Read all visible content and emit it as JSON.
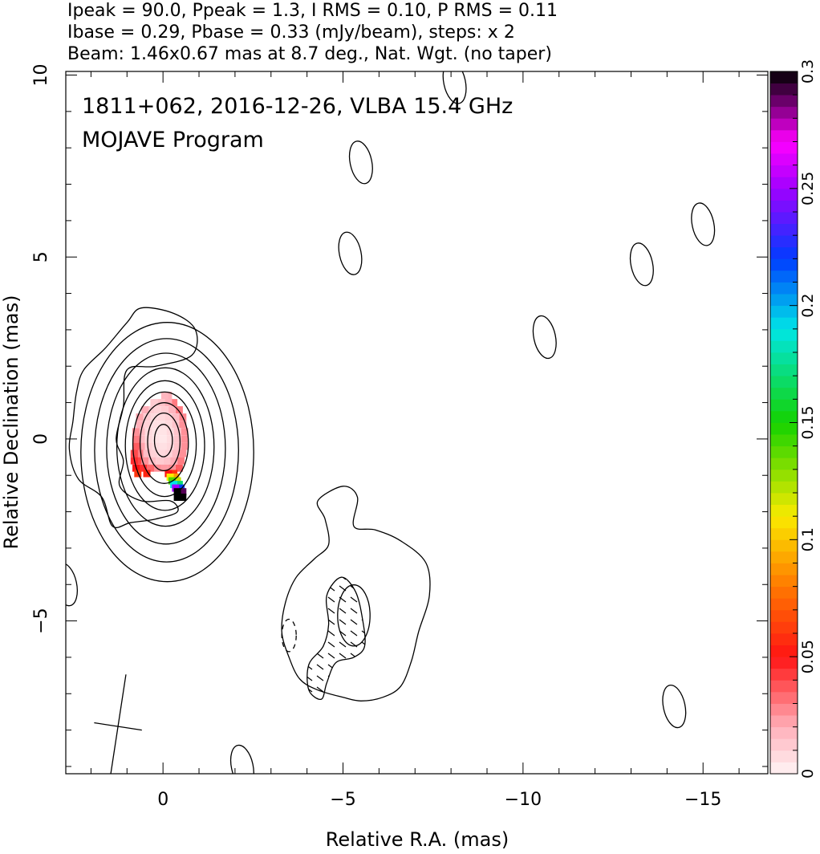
{
  "header": {
    "line1": "Ipeak = 90.0, Ppeak = 1.3, I RMS = 0.10, P RMS = 0.11",
    "line2": "Ibase = 0.29, Pbase = 0.33 (mJy/beam), steps: x 2",
    "line3": "Beam: 1.46x0.67 mas at 8.7 deg., Nat. Wgt. (no taper)"
  },
  "chart_data": {
    "type": "heatmap",
    "title": "1811+062, 2016-12-26, VLBA 15.4 GHz",
    "subtitle": "MOJAVE Program",
    "xlabel": "Relative R.A. (mas)",
    "ylabel": "Relative Declination (mas)",
    "xlim": [
      2.7,
      -16.8
    ],
    "ylim": [
      -9.2,
      10.1
    ],
    "x_ticks": [
      0,
      -5,
      -10,
      -15
    ],
    "x_tick_labels": [
      "0",
      "−5",
      "−10",
      "−15"
    ],
    "y_ticks": [
      10,
      5,
      0,
      -5
    ],
    "y_tick_labels": [
      "10",
      "5",
      "0",
      "−5"
    ],
    "colorbar": {
      "range": [
        0,
        0.3
      ],
      "ticks": [
        0,
        0.05,
        0.1,
        0.15,
        0.2,
        0.25,
        0.3
      ],
      "tick_labels": [
        "0",
        "0.05",
        "0.1",
        "0.15",
        "0.2",
        "0.25",
        "0.3"
      ]
    },
    "contours": {
      "base_mJy_per_beam": 0.29,
      "step_factor": 2,
      "core_center_mas": [
        0.0,
        0.0
      ],
      "nested_core_contour_semi_axes_mas": [
        [
          2.4,
          3.6
        ],
        [
          2.0,
          3.1
        ],
        [
          1.65,
          2.65
        ],
        [
          1.35,
          2.2
        ],
        [
          1.1,
          1.8
        ],
        [
          0.88,
          1.45
        ],
        [
          0.67,
          1.12
        ],
        [
          0.45,
          0.8
        ],
        [
          0.25,
          0.45
        ]
      ],
      "outer_core_contour_mas": [
        [
          -0.2,
          -1.7
        ],
        [
          0.6,
          -1.7
        ],
        [
          1.2,
          -1.3
        ],
        [
          1.1,
          -0.6
        ],
        [
          1.3,
          0.0
        ],
        [
          1.1,
          0.9
        ],
        [
          1.0,
          1.9
        ],
        [
          0.2,
          2.0
        ],
        [
          -0.8,
          2.3
        ],
        [
          -0.9,
          3.0
        ],
        [
          -0.3,
          3.45
        ],
        [
          0.6,
          3.6
        ],
        [
          1.0,
          3.2
        ],
        [
          1.6,
          2.5
        ],
        [
          2.2,
          1.9
        ],
        [
          2.4,
          1.3
        ],
        [
          2.5,
          0.5
        ],
        [
          2.6,
          -0.3
        ],
        [
          2.35,
          -1.1
        ],
        [
          1.7,
          -1.6
        ],
        [
          1.4,
          -2.4
        ],
        [
          0.9,
          -2.3
        ],
        [
          0.2,
          -2.2
        ],
        [
          -0.4,
          -2.0
        ]
      ],
      "jet_outer_contour_mas": [
        [
          -5.0,
          -1.3
        ],
        [
          -5.4,
          -1.6
        ],
        [
          -5.3,
          -2.4
        ],
        [
          -5.9,
          -2.5
        ],
        [
          -6.6,
          -2.8
        ],
        [
          -7.3,
          -3.4
        ],
        [
          -7.4,
          -4.3
        ],
        [
          -7.1,
          -5.3
        ],
        [
          -6.9,
          -6.1
        ],
        [
          -6.6,
          -6.8
        ],
        [
          -6.1,
          -7.1
        ],
        [
          -5.5,
          -7.2
        ],
        [
          -5.0,
          -7.1
        ],
        [
          -4.3,
          -6.9
        ],
        [
          -3.8,
          -6.6
        ],
        [
          -3.5,
          -6.0
        ],
        [
          -3.3,
          -5.3
        ],
        [
          -3.4,
          -4.5
        ],
        [
          -3.7,
          -3.8
        ],
        [
          -4.2,
          -3.3
        ],
        [
          -4.6,
          -2.9
        ],
        [
          -4.5,
          -2.2
        ],
        [
          -4.3,
          -1.7
        ]
      ],
      "jet_inner_contour_mas": [
        [
          -4.95,
          -3.8
        ],
        [
          -5.35,
          -4.2
        ],
        [
          -5.55,
          -5.0
        ],
        [
          -5.6,
          -5.7
        ],
        [
          -5.3,
          -6.0
        ],
        [
          -4.8,
          -6.15
        ],
        [
          -4.55,
          -6.7
        ],
        [
          -4.4,
          -7.15
        ],
        [
          -4.05,
          -6.9
        ],
        [
          -4.05,
          -6.2
        ],
        [
          -4.45,
          -5.7
        ],
        [
          -4.6,
          -5.1
        ],
        [
          -4.55,
          -4.3
        ]
      ],
      "jet_innermost_center_mas": [
        -5.3,
        -4.85
      ],
      "jet_innermost_semi_axes_mas": [
        0.45,
        0.85
      ],
      "isolated_contours_mas": [
        [
          -8.1,
          9.8
        ],
        [
          -5.5,
          7.6
        ],
        [
          -5.2,
          5.1
        ],
        [
          -10.6,
          2.8
        ],
        [
          -13.3,
          4.8
        ],
        [
          -15.0,
          5.9
        ],
        [
          -14.2,
          -7.35
        ],
        [
          -2.2,
          -9.0
        ],
        [
          2.7,
          -4.0
        ]
      ],
      "negative_contours_mas": [
        [
          -3.5,
          -5.4
        ]
      ],
      "beam": {
        "center_mas": [
          1.25,
          -7.9
        ],
        "major_mas": 1.46,
        "minor_mas": 0.67,
        "pa_deg": 8.7
      }
    },
    "fractional_polarization_pixels": [
      {
        "x": -0.15,
        "y": 1.2,
        "v": 0.02
      },
      {
        "x": -0.05,
        "y": 1.2,
        "v": 0.018
      },
      {
        "x": -0.3,
        "y": 1.0,
        "v": 0.03
      },
      {
        "x": -0.15,
        "y": 1.0,
        "v": 0.02
      },
      {
        "x": 0.05,
        "y": 1.0,
        "v": 0.015
      },
      {
        "x": 0.25,
        "y": 1.0,
        "v": 0.012
      },
      {
        "x": -0.45,
        "y": 0.8,
        "v": 0.03
      },
      {
        "x": -0.25,
        "y": 0.8,
        "v": 0.018
      },
      {
        "x": -0.05,
        "y": 0.8,
        "v": 0.012
      },
      {
        "x": 0.15,
        "y": 0.8,
        "v": 0.01
      },
      {
        "x": 0.35,
        "y": 0.8,
        "v": 0.012
      },
      {
        "x": 0.5,
        "y": 0.8,
        "v": 0.02
      },
      {
        "x": -0.55,
        "y": 0.6,
        "v": 0.028
      },
      {
        "x": -0.35,
        "y": 0.6,
        "v": 0.016
      },
      {
        "x": -0.15,
        "y": 0.6,
        "v": 0.01
      },
      {
        "x": 0.05,
        "y": 0.6,
        "v": 0.008
      },
      {
        "x": 0.25,
        "y": 0.6,
        "v": 0.008
      },
      {
        "x": 0.45,
        "y": 0.6,
        "v": 0.012
      },
      {
        "x": 0.65,
        "y": 0.6,
        "v": 0.022
      },
      {
        "x": -0.55,
        "y": 0.4,
        "v": 0.026
      },
      {
        "x": -0.35,
        "y": 0.4,
        "v": 0.014
      },
      {
        "x": -0.15,
        "y": 0.4,
        "v": 0.008
      },
      {
        "x": 0.05,
        "y": 0.4,
        "v": 0.006
      },
      {
        "x": 0.25,
        "y": 0.4,
        "v": 0.006
      },
      {
        "x": 0.45,
        "y": 0.4,
        "v": 0.01
      },
      {
        "x": 0.65,
        "y": 0.4,
        "v": 0.02
      },
      {
        "x": -0.6,
        "y": 0.2,
        "v": 0.026
      },
      {
        "x": -0.4,
        "y": 0.2,
        "v": 0.014
      },
      {
        "x": -0.2,
        "y": 0.2,
        "v": 0.008
      },
      {
        "x": 0.0,
        "y": 0.2,
        "v": 0.005
      },
      {
        "x": 0.2,
        "y": 0.2,
        "v": 0.005
      },
      {
        "x": 0.4,
        "y": 0.2,
        "v": 0.008
      },
      {
        "x": 0.6,
        "y": 0.2,
        "v": 0.016
      },
      {
        "x": 0.75,
        "y": 0.2,
        "v": 0.026
      },
      {
        "x": -0.6,
        "y": 0.0,
        "v": 0.026
      },
      {
        "x": -0.4,
        "y": 0.0,
        "v": 0.014
      },
      {
        "x": -0.2,
        "y": 0.0,
        "v": 0.007
      },
      {
        "x": 0.0,
        "y": 0.0,
        "v": 0.004
      },
      {
        "x": 0.2,
        "y": 0.0,
        "v": 0.005
      },
      {
        "x": 0.4,
        "y": 0.0,
        "v": 0.008
      },
      {
        "x": 0.6,
        "y": 0.0,
        "v": 0.016
      },
      {
        "x": 0.75,
        "y": 0.0,
        "v": 0.03
      },
      {
        "x": -0.6,
        "y": -0.2,
        "v": 0.026
      },
      {
        "x": -0.4,
        "y": -0.2,
        "v": 0.014
      },
      {
        "x": -0.2,
        "y": -0.2,
        "v": 0.008
      },
      {
        "x": 0.0,
        "y": -0.2,
        "v": 0.006
      },
      {
        "x": 0.2,
        "y": -0.2,
        "v": 0.007
      },
      {
        "x": 0.4,
        "y": -0.2,
        "v": 0.01
      },
      {
        "x": 0.6,
        "y": -0.2,
        "v": 0.022
      },
      {
        "x": 0.75,
        "y": -0.2,
        "v": 0.036
      },
      {
        "x": -0.55,
        "y": -0.4,
        "v": 0.026
      },
      {
        "x": -0.35,
        "y": -0.4,
        "v": 0.016
      },
      {
        "x": -0.15,
        "y": -0.4,
        "v": 0.01
      },
      {
        "x": 0.05,
        "y": -0.4,
        "v": 0.008
      },
      {
        "x": 0.25,
        "y": -0.4,
        "v": 0.01
      },
      {
        "x": 0.45,
        "y": -0.4,
        "v": 0.016
      },
      {
        "x": 0.65,
        "y": -0.4,
        "v": 0.03
      },
      {
        "x": 0.8,
        "y": -0.4,
        "v": 0.04
      },
      {
        "x": -0.5,
        "y": -0.6,
        "v": 0.03
      },
      {
        "x": -0.3,
        "y": -0.6,
        "v": 0.02
      },
      {
        "x": -0.1,
        "y": -0.6,
        "v": 0.014
      },
      {
        "x": 0.1,
        "y": -0.6,
        "v": 0.012
      },
      {
        "x": 0.3,
        "y": -0.6,
        "v": 0.016
      },
      {
        "x": 0.5,
        "y": -0.6,
        "v": 0.026
      },
      {
        "x": 0.7,
        "y": -0.6,
        "v": 0.04
      },
      {
        "x": 0.8,
        "y": -0.6,
        "v": 0.045
      },
      {
        "x": -0.45,
        "y": -0.8,
        "v": 0.036
      },
      {
        "x": -0.25,
        "y": -0.8,
        "v": 0.026
      },
      {
        "x": -0.05,
        "y": -0.8,
        "v": 0.024
      },
      {
        "x": 0.15,
        "y": -0.8,
        "v": 0.026
      },
      {
        "x": 0.35,
        "y": -0.8,
        "v": 0.034
      },
      {
        "x": 0.55,
        "y": -0.8,
        "v": 0.045
      },
      {
        "x": 0.75,
        "y": -0.8,
        "v": 0.05
      },
      {
        "x": -0.3,
        "y": -0.95,
        "v": 0.06
      },
      {
        "x": -0.15,
        "y": -0.95,
        "v": 0.05
      },
      {
        "x": 0.45,
        "y": -0.95,
        "v": 0.055
      },
      {
        "x": 0.7,
        "y": -0.95,
        "v": 0.06
      },
      {
        "x": -0.35,
        "y": -1.05,
        "v": 0.09
      },
      {
        "x": -0.2,
        "y": -1.05,
        "v": 0.11
      },
      {
        "x": -0.4,
        "y": -1.15,
        "v": 0.12
      },
      {
        "x": -0.25,
        "y": -1.15,
        "v": 0.14
      },
      {
        "x": -0.45,
        "y": -1.25,
        "v": 0.17
      },
      {
        "x": -0.3,
        "y": -1.25,
        "v": 0.19
      },
      {
        "x": -0.5,
        "y": -1.35,
        "v": 0.22
      },
      {
        "x": -0.35,
        "y": -1.35,
        "v": 0.25
      },
      {
        "x": -0.55,
        "y": -1.45,
        "v": 0.29
      },
      {
        "x": -0.4,
        "y": -1.45,
        "v": 0.3
      },
      {
        "x": -0.55,
        "y": -1.6,
        "v": 0.3
      },
      {
        "x": -0.4,
        "y": -1.6,
        "v": 0.3
      }
    ]
  }
}
